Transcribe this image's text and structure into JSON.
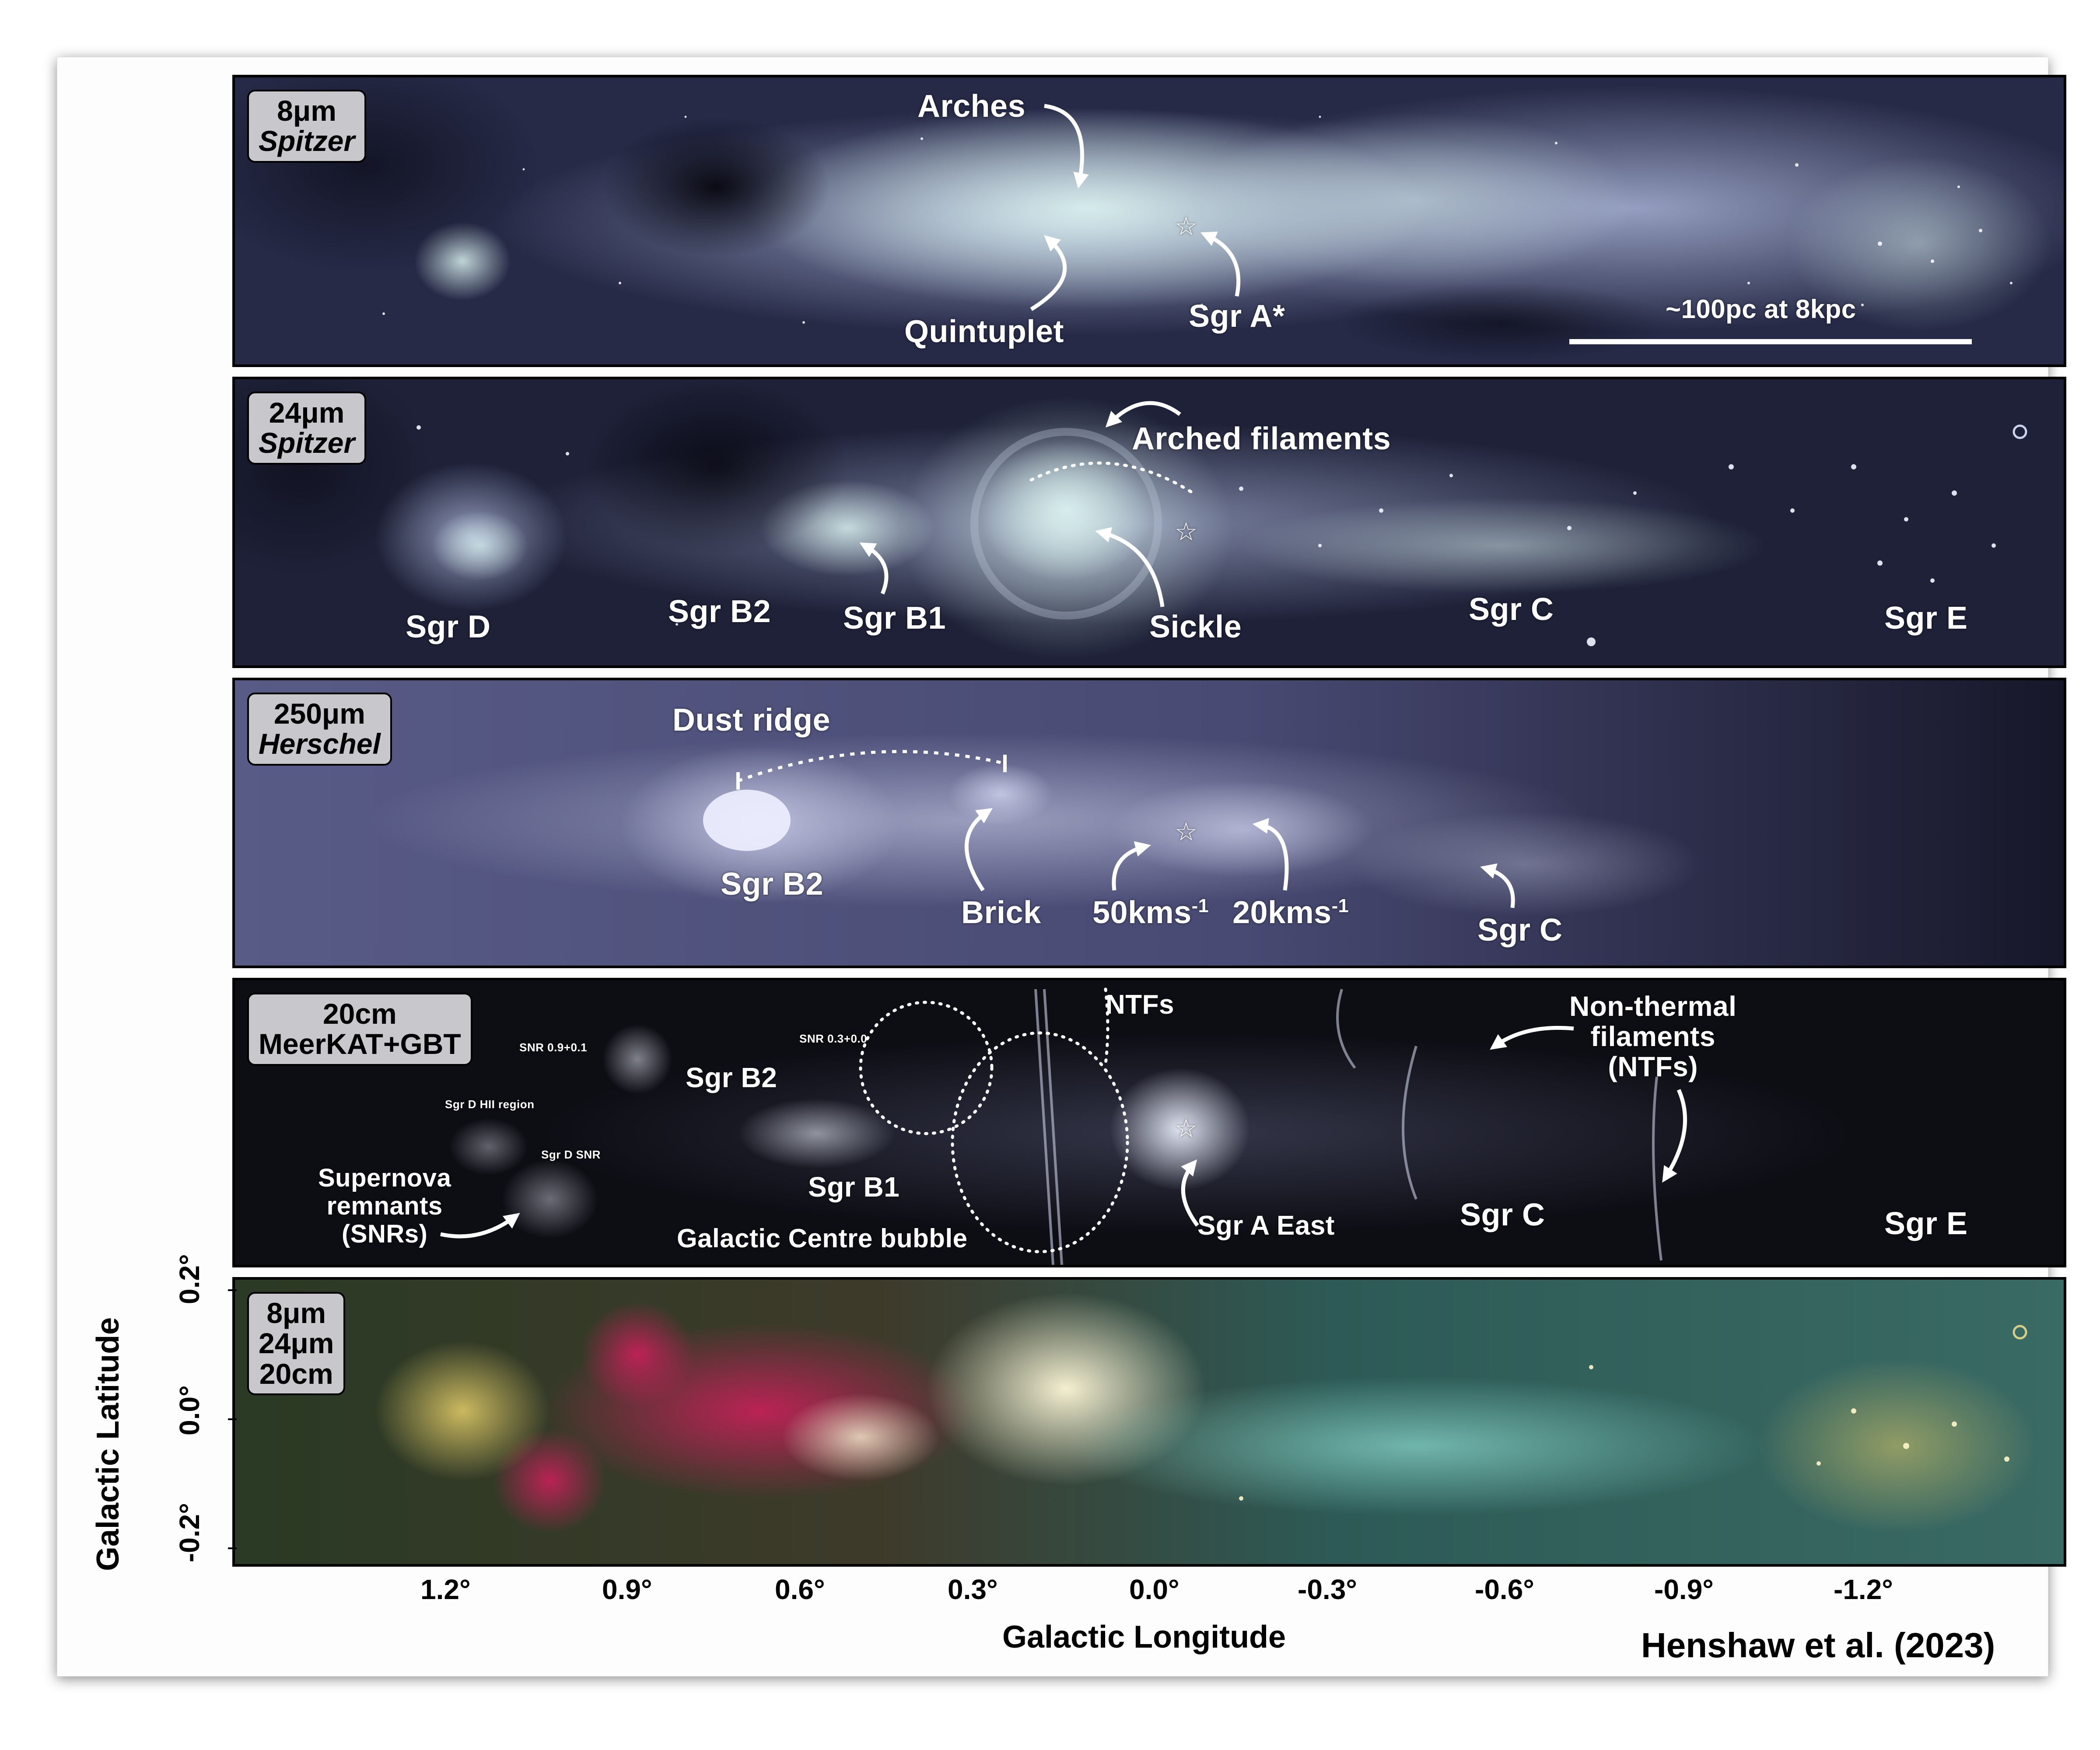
{
  "credit": "Henshaw et al. (2023)",
  "axes": {
    "x_title": "Galactic Longitude",
    "y_title": "Galactic Latitude",
    "x_ticks": [
      "1.2°",
      "0.9°",
      "0.6°",
      "0.3°",
      "0.0°",
      "-0.3°",
      "-0.6°",
      "-0.9°",
      "-1.2°"
    ],
    "y_ticks": [
      "0.2°",
      "0.0°",
      "-0.2°"
    ]
  },
  "panels": {
    "p1": {
      "badge": [
        "8μm",
        "Spitzer"
      ],
      "labels": {
        "arches": "Arches",
        "quintuplet": "Quintuplet",
        "sgr_a_star": "Sgr A*"
      },
      "scale_bar": "~100pc at 8kpc",
      "star_symbol": "☆"
    },
    "p2": {
      "badge": [
        "24μm",
        "Spitzer"
      ],
      "labels": {
        "arched_filaments": "Arched filaments",
        "sgr_d": "Sgr D",
        "sgr_b2": "Sgr B2",
        "sgr_b1": "Sgr B1",
        "sickle": "Sickle",
        "sgr_c": "Sgr C",
        "sgr_e": "Sgr E"
      },
      "star_symbol": "☆"
    },
    "p3": {
      "badge": [
        "250μm",
        "Herschel"
      ],
      "labels": {
        "dust_ridge": "Dust ridge",
        "sgr_b2": "Sgr B2",
        "brick": "Brick",
        "v50": "50kms",
        "v20": "20kms",
        "vel_sup": "-1",
        "sgr_c": "Sgr C"
      },
      "star_symbol": "☆"
    },
    "p4": {
      "badge": [
        "20cm",
        "MeerKAT+GBT"
      ],
      "labels": {
        "snr_09": "SNR 0.9+0.1",
        "snr_03": "SNR 0.3+0.0",
        "ntfs": "NTFs",
        "ntf_long": [
          "Non-thermal",
          "filaments",
          "(NTFs)"
        ],
        "sgr_b2": "Sgr B2",
        "sgrd_hii": "Sgr D HII region",
        "sgrd_snr": "Sgr D SNR",
        "snrs": [
          "Supernova",
          "remnants",
          "(SNRs)"
        ],
        "sgr_b1": "Sgr B1",
        "gc_bubble": "Galactic Centre bubble",
        "sgr_a_east": "Sgr A East",
        "sgr_c": "Sgr C",
        "sgr_e": "Sgr E"
      },
      "star_symbol": "☆"
    },
    "p5": {
      "badge": [
        "8μm",
        "24μm",
        "20cm"
      ]
    }
  }
}
